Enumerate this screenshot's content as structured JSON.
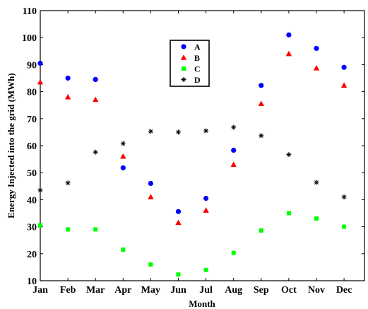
{
  "chart_data": {
    "type": "scatter",
    "xlabel": "Month",
    "ylabel": "Energy Injected into the grid (MWh)",
    "categories": [
      "Jan",
      "Feb",
      "Mar",
      "Apr",
      "May",
      "Jun",
      "Jul",
      "Aug",
      "Sep",
      "Oct",
      "Nov",
      "Dec"
    ],
    "ylim": [
      10,
      110
    ],
    "yticks": [
      10,
      20,
      30,
      40,
      50,
      60,
      70,
      80,
      90,
      100,
      110
    ],
    "grid": false,
    "legend_position": "top-center",
    "series": [
      {
        "name": "A",
        "marker": "circle",
        "color": "#0000ff",
        "values": [
          90.5,
          85,
          84.5,
          51.8,
          46,
          35.6,
          40.5,
          58.3,
          82.3,
          101,
          96,
          89
        ]
      },
      {
        "name": "B",
        "marker": "triangle",
        "color": "#ff0000",
        "values": [
          83.5,
          78,
          77,
          56,
          41,
          31.5,
          36,
          53,
          75.5,
          94,
          88.7,
          82.3
        ]
      },
      {
        "name": "C",
        "marker": "square",
        "color": "#00ff00",
        "values": [
          30.5,
          29,
          29,
          21.5,
          16,
          12.3,
          14,
          20.3,
          28.6,
          35,
          33,
          30
        ]
      },
      {
        "name": "D",
        "marker": "asterisk",
        "color": "#000000",
        "values": [
          43.5,
          46.2,
          57.6,
          60.8,
          65.3,
          65,
          65.5,
          66.8,
          63.7,
          56.7,
          46.4,
          41
        ]
      }
    ]
  }
}
